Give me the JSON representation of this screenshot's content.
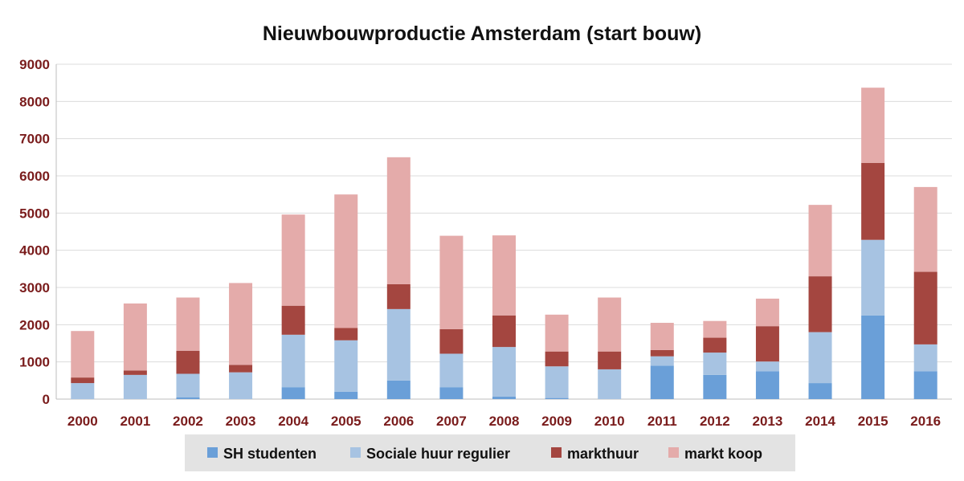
{
  "chart_data": {
    "type": "bar",
    "stacked": true,
    "title": "Nieuwbouwproductie Amsterdam (start bouw)",
    "xlabel": "",
    "ylabel": "",
    "ylim": [
      0,
      9000
    ],
    "yticks": [
      0,
      1000,
      2000,
      3000,
      4000,
      5000,
      6000,
      7000,
      8000,
      9000
    ],
    "grid": true,
    "legend_position": "bottom",
    "categories": [
      "2000",
      "2001",
      "2002",
      "2003",
      "2004",
      "2005",
      "2006",
      "2007",
      "2008",
      "2009",
      "2010",
      "2011",
      "2012",
      "2013",
      "2014",
      "2015",
      "2016"
    ],
    "series": [
      {
        "name": "SH studenten",
        "color": "#6a9fd8",
        "values": [
          0,
          0,
          50,
          0,
          320,
          200,
          500,
          320,
          70,
          30,
          0,
          900,
          650,
          750,
          430,
          2250,
          750
        ]
      },
      {
        "name": "Sociale huur regulier",
        "color": "#a7c3e2",
        "values": [
          430,
          650,
          630,
          720,
          1410,
          1380,
          1920,
          900,
          1330,
          850,
          800,
          250,
          600,
          260,
          1370,
          2030,
          720
        ]
      },
      {
        "name": "markthuur",
        "color": "#a44640",
        "values": [
          150,
          120,
          620,
          200,
          780,
          330,
          670,
          660,
          850,
          400,
          480,
          170,
          400,
          950,
          1500,
          2070,
          1950
        ]
      },
      {
        "name": "markt koop",
        "color": "#e4abaa",
        "values": [
          1250,
          1800,
          1430,
          2200,
          2450,
          3590,
          3410,
          2510,
          2150,
          990,
          1450,
          730,
          450,
          740,
          1920,
          2020,
          2280
        ]
      }
    ]
  }
}
